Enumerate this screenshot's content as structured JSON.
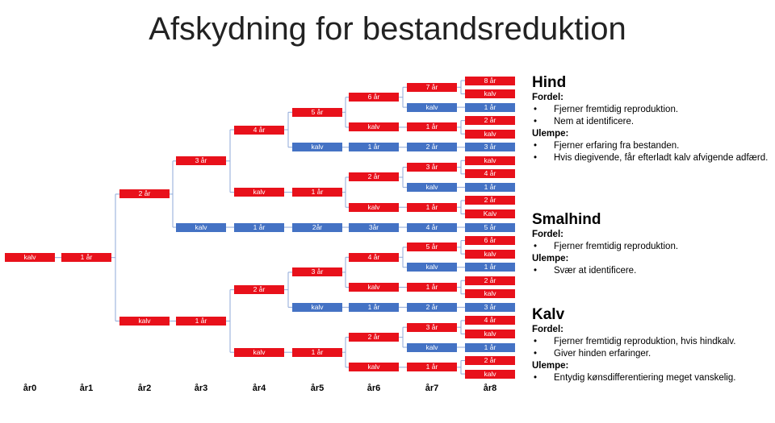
{
  "title": "Afskydning for bestandsreduktion",
  "years": [
    "år0",
    "år1",
    "år2",
    "år3",
    "år4",
    "år5",
    "år6",
    "år7",
    "år8"
  ],
  "colors": {
    "female": "#e8111b",
    "male": "#4472c4",
    "line": "#8fa8d8"
  },
  "tree": {
    "label": "kalv",
    "sex": "f",
    "children": [
      {
        "label": "1 år",
        "sex": "f",
        "children": [
          {
            "label": "2 år",
            "sex": "f",
            "children": [
              {
                "label": "3 år",
                "sex": "f",
                "children": [
                  {
                    "label": "4 år",
                    "sex": "f",
                    "children": [
                      {
                        "label": "5 år",
                        "sex": "f",
                        "children": [
                          {
                            "label": "6 år",
                            "sex": "f",
                            "children": [
                              {
                                "label": "7 år",
                                "sex": "f",
                                "children": [
                                  {
                                    "label": "8 år",
                                    "sex": "f"
                                  },
                                  {
                                    "label": "kalv",
                                    "sex": "f"
                                  }
                                ]
                              },
                              {
                                "label": "kalv",
                                "sex": "m",
                                "children": [
                                  {
                                    "label": "1 år",
                                    "sex": "m"
                                  }
                                ]
                              }
                            ]
                          },
                          {
                            "label": "kalv",
                            "sex": "f",
                            "children": [
                              {
                                "label": "1 år",
                                "sex": "f",
                                "children": [
                                  {
                                    "label": "2 år",
                                    "sex": "f"
                                  },
                                  {
                                    "label": "kalv",
                                    "sex": "f"
                                  }
                                ]
                              }
                            ]
                          }
                        ]
                      },
                      {
                        "label": "kalv",
                        "sex": "m",
                        "children": [
                          {
                            "label": "1 år",
                            "sex": "m",
                            "children": [
                              {
                                "label": "2 år",
                                "sex": "m",
                                "children": [
                                  {
                                    "label": "3 år",
                                    "sex": "m"
                                  }
                                ]
                              }
                            ]
                          }
                        ]
                      }
                    ]
                  },
                  {
                    "label": "kalv",
                    "sex": "f",
                    "children": [
                      {
                        "label": "1 år",
                        "sex": "f",
                        "children": [
                          {
                            "label": "2 år",
                            "sex": "f",
                            "children": [
                              {
                                "label": "3 år",
                                "sex": "f",
                                "children": [
                                  {
                                    "label": "kalv",
                                    "sex": "f"
                                  },
                                  {
                                    "label": "4 år",
                                    "sex": "f"
                                  }
                                ]
                              },
                              {
                                "label": "kalv",
                                "sex": "m",
                                "children": [
                                  {
                                    "label": "1 år",
                                    "sex": "m"
                                  }
                                ]
                              }
                            ]
                          },
                          {
                            "label": "kalv",
                            "sex": "f",
                            "children": [
                              {
                                "label": "1 år",
                                "sex": "f",
                                "children": [
                                  {
                                    "label": "2 år",
                                    "sex": "f"
                                  },
                                  {
                                    "label": "Kalv",
                                    "sex": "f"
                                  }
                                ]
                              }
                            ]
                          }
                        ]
                      }
                    ]
                  }
                ]
              },
              {
                "label": "kalv",
                "sex": "m",
                "children": [
                  {
                    "label": "1 år",
                    "sex": "m",
                    "children": [
                      {
                        "label": "2år",
                        "sex": "m",
                        "children": [
                          {
                            "label": "3år",
                            "sex": "m",
                            "children": [
                              {
                                "label": "4 år",
                                "sex": "m",
                                "children": [
                                  {
                                    "label": "5 år",
                                    "sex": "m"
                                  }
                                ]
                              }
                            ]
                          }
                        ]
                      }
                    ]
                  }
                ]
              }
            ]
          },
          {
            "label": "kalv",
            "sex": "f",
            "children": [
              {
                "label": "1 år",
                "sex": "f",
                "children": [
                  {
                    "label": "2 år",
                    "sex": "f",
                    "children": [
                      {
                        "label": "3 år",
                        "sex": "f",
                        "children": [
                          {
                            "label": "4 år",
                            "sex": "f",
                            "children": [
                              {
                                "label": "5 år",
                                "sex": "f",
                                "children": [
                                  {
                                    "label": "6 år",
                                    "sex": "f"
                                  },
                                  {
                                    "label": "kalv",
                                    "sex": "f"
                                  }
                                ]
                              },
                              {
                                "label": "kalv",
                                "sex": "m",
                                "children": [
                                  {
                                    "label": "1 år",
                                    "sex": "m"
                                  }
                                ]
                              }
                            ]
                          },
                          {
                            "label": "kalv",
                            "sex": "f",
                            "children": [
                              {
                                "label": "1 år",
                                "sex": "f",
                                "children": [
                                  {
                                    "label": "2 år",
                                    "sex": "f"
                                  },
                                  {
                                    "label": "kalv",
                                    "sex": "f"
                                  }
                                ]
                              }
                            ]
                          }
                        ]
                      },
                      {
                        "label": "kalv",
                        "sex": "m",
                        "children": [
                          {
                            "label": "1 år",
                            "sex": "m",
                            "children": [
                              {
                                "label": "2 år",
                                "sex": "m",
                                "children": [
                                  {
                                    "label": "3 år",
                                    "sex": "m"
                                  }
                                ]
                              }
                            ]
                          }
                        ]
                      }
                    ]
                  },
                  {
                    "label": "kalv",
                    "sex": "f",
                    "children": [
                      {
                        "label": "1 år",
                        "sex": "f",
                        "children": [
                          {
                            "label": "2 år",
                            "sex": "f",
                            "children": [
                              {
                                "label": "3 år",
                                "sex": "f",
                                "children": [
                                  {
                                    "label": "4 år",
                                    "sex": "f"
                                  },
                                  {
                                    "label": "kalv",
                                    "sex": "f"
                                  }
                                ]
                              },
                              {
                                "label": "kalv",
                                "sex": "m",
                                "children": [
                                  {
                                    "label": "1 år",
                                    "sex": "m"
                                  }
                                ]
                              }
                            ]
                          },
                          {
                            "label": "kalv",
                            "sex": "f",
                            "children": [
                              {
                                "label": "1 år",
                                "sex": "f",
                                "children": [
                                  {
                                    "label": "2 år",
                                    "sex": "f"
                                  },
                                  {
                                    "label": "kalv",
                                    "sex": "f"
                                  }
                                ]
                              }
                            ]
                          }
                        ]
                      }
                    ]
                  }
                ]
              }
            ]
          }
        ]
      }
    ]
  },
  "panels": [
    {
      "title": "Hind",
      "fordel_label": "Fordel:",
      "fordel": [
        "Fjerner fremtidig reproduktion.",
        "Nem at identificere."
      ],
      "ulempe_label": "Ulempe:",
      "ulempe": [
        "Fjerner erfaring fra bestanden.",
        "Hvis diegivende, får efterladt kalv afvigende adfærd."
      ]
    },
    {
      "title": "Smalhind",
      "fordel_label": "Fordel:",
      "fordel": [
        "Fjerner fremtidig reproduktion."
      ],
      "ulempe_label": "Ulempe:",
      "ulempe": [
        "Svær at identificere."
      ]
    },
    {
      "title": "Kalv",
      "fordel_label": "Fordel:",
      "fordel": [
        "Fjerner fremtidig reproduktion, hvis hindkalv.",
        "Giver hinden erfaringer."
      ],
      "ulempe_label": "Ulempe:",
      "ulempe": [
        "Entydig kønsdifferentiering meget vanskelig."
      ]
    }
  ]
}
